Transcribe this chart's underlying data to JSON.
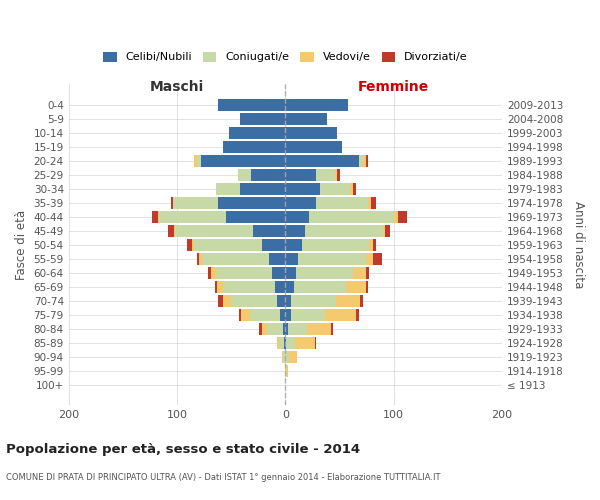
{
  "age_groups": [
    "100+",
    "95-99",
    "90-94",
    "85-89",
    "80-84",
    "75-79",
    "70-74",
    "65-69",
    "60-64",
    "55-59",
    "50-54",
    "45-49",
    "40-44",
    "35-39",
    "30-34",
    "25-29",
    "20-24",
    "15-19",
    "10-14",
    "5-9",
    "0-4"
  ],
  "birth_years": [
    "≤ 1913",
    "1914-1918",
    "1919-1923",
    "1924-1928",
    "1929-1933",
    "1934-1938",
    "1939-1943",
    "1944-1948",
    "1949-1953",
    "1954-1958",
    "1959-1963",
    "1964-1968",
    "1969-1973",
    "1974-1978",
    "1979-1983",
    "1984-1988",
    "1989-1993",
    "1994-1998",
    "1999-2003",
    "2004-2008",
    "2009-2013"
  ],
  "maschi_celibi": [
    0,
    0,
    0,
    1,
    2,
    5,
    8,
    10,
    12,
    15,
    22,
    30,
    55,
    62,
    42,
    32,
    78,
    58,
    52,
    42,
    62
  ],
  "maschi_coniugati": [
    0,
    0,
    2,
    5,
    15,
    28,
    42,
    48,
    52,
    62,
    62,
    72,
    62,
    42,
    22,
    12,
    4,
    0,
    0,
    0,
    0
  ],
  "maschi_vedovi": [
    0,
    0,
    1,
    2,
    5,
    8,
    8,
    5,
    5,
    3,
    2,
    1,
    1,
    0,
    0,
    0,
    2,
    0,
    0,
    0,
    0
  ],
  "maschi_divorziati": [
    0,
    0,
    0,
    0,
    2,
    2,
    4,
    2,
    2,
    2,
    5,
    5,
    5,
    2,
    0,
    0,
    0,
    0,
    0,
    0,
    0
  ],
  "femmine_nubili": [
    0,
    0,
    0,
    1,
    2,
    5,
    5,
    8,
    10,
    12,
    15,
    18,
    22,
    28,
    32,
    28,
    68,
    52,
    48,
    38,
    58
  ],
  "femmine_coniugate": [
    0,
    1,
    3,
    8,
    18,
    32,
    42,
    48,
    52,
    62,
    62,
    72,
    78,
    48,
    28,
    18,
    4,
    0,
    0,
    0,
    0
  ],
  "femmine_vedove": [
    0,
    1,
    8,
    18,
    22,
    28,
    22,
    18,
    12,
    7,
    4,
    2,
    4,
    3,
    2,
    2,
    2,
    0,
    0,
    0,
    0
  ],
  "femmine_divorziate": [
    0,
    0,
    0,
    1,
    2,
    3,
    3,
    2,
    3,
    8,
    3,
    5,
    8,
    5,
    3,
    2,
    2,
    0,
    0,
    0,
    0
  ],
  "color_celibi": "#3a6ea5",
  "color_coniugati": "#c8d9a8",
  "color_vedovi": "#f5c96e",
  "color_divorziati": "#c0392b",
  "title": "Popolazione per età, sesso e stato civile - 2014",
  "subtitle": "COMUNE DI PRATA DI PRINCIPATO ULTRA (AV) - Dati ISTAT 1° gennaio 2014 - Elaborazione TUTTITALIA.IT",
  "xlabel_left": "Maschi",
  "xlabel_right": "Femmine",
  "ylabel": "Fasce di età",
  "ylabel_right": "Anni di nascita",
  "legend": [
    "Celibi/Nubili",
    "Coniugati/e",
    "Vedovi/e",
    "Divorziati/e"
  ],
  "xlim": 200,
  "background_color": "#ffffff",
  "grid_color": "#cccccc"
}
